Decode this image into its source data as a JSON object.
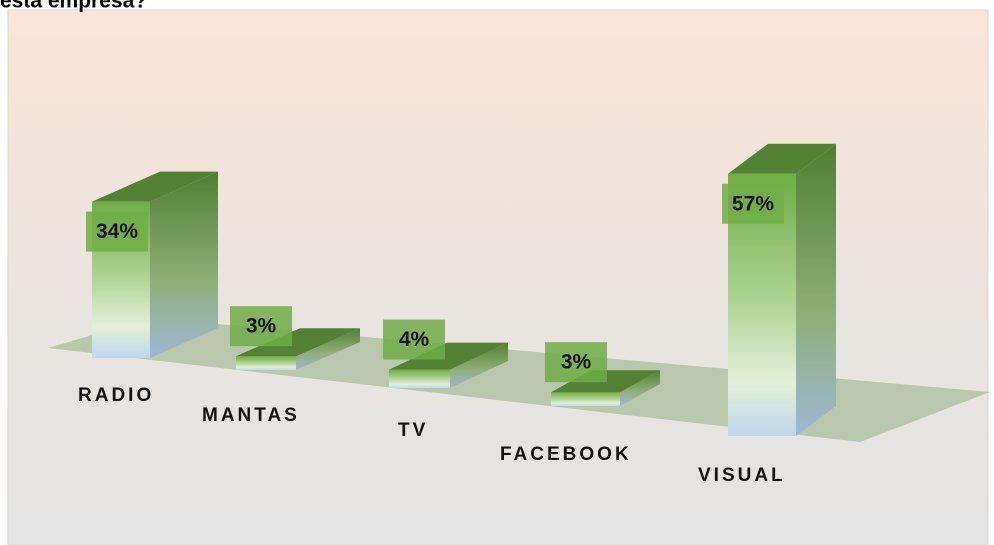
{
  "chart_data": {
    "type": "bar3d",
    "title": "esta empresa?",
    "categories": [
      "RADIO",
      "MANTAS",
      "TV",
      "FACEBOOK",
      "VISUAL"
    ],
    "values": [
      34,
      3,
      4,
      3,
      57
    ],
    "value_labels": [
      "34%",
      "3%",
      "4%",
      "3%",
      "57%"
    ],
    "color": "#548235"
  }
}
